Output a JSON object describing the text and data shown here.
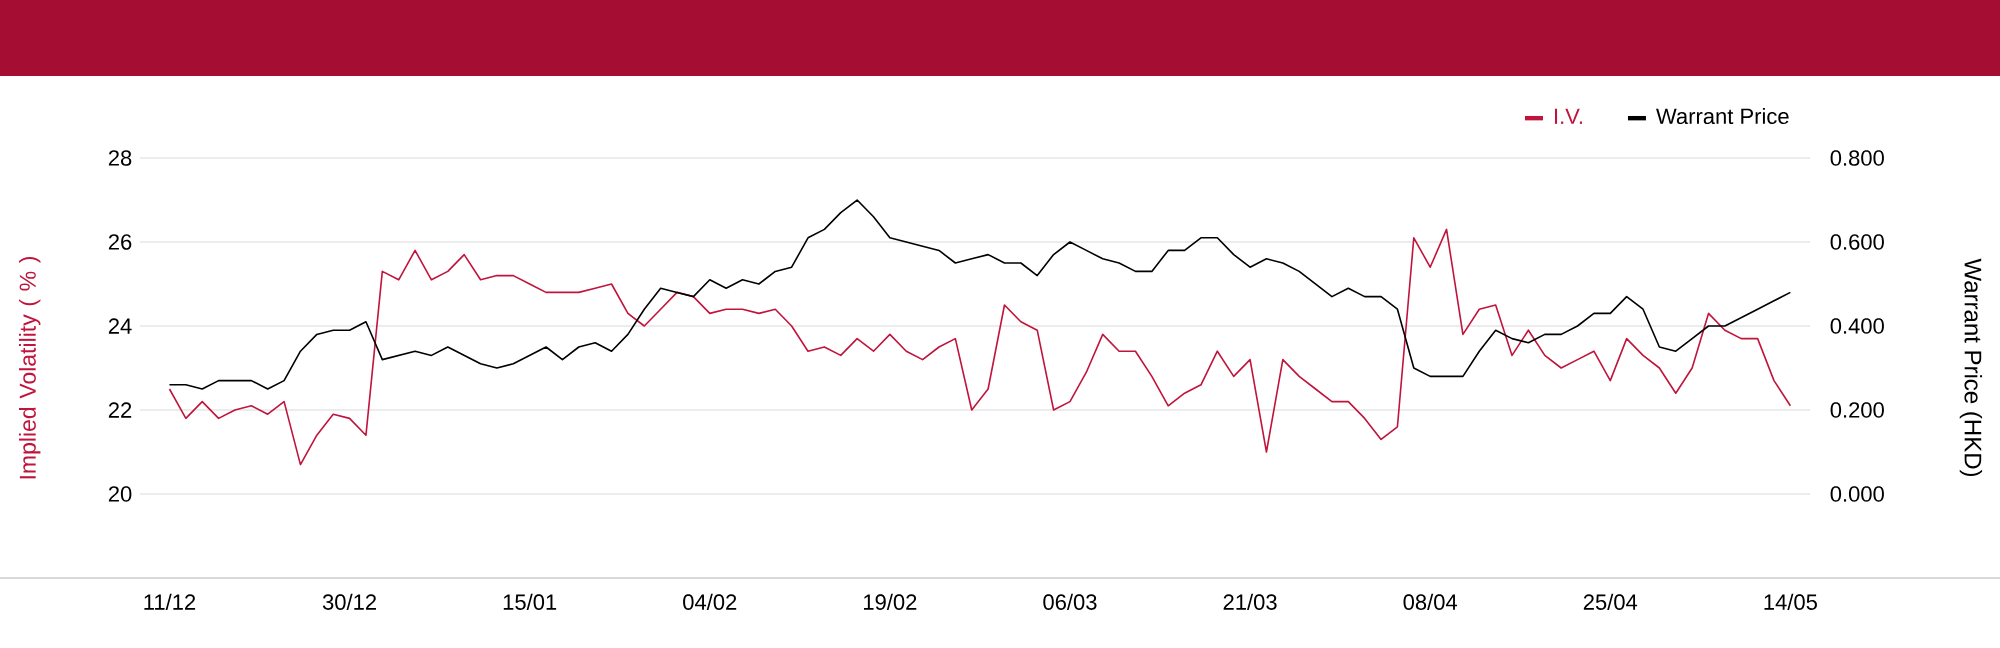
{
  "chart_data": {
    "type": "line",
    "categories": [
      "11/12",
      null,
      null,
      null,
      null,
      null,
      null,
      null,
      null,
      null,
      null,
      "30/12",
      null,
      null,
      null,
      null,
      null,
      null,
      null,
      null,
      null,
      null,
      "15/01",
      null,
      null,
      null,
      null,
      null,
      null,
      null,
      null,
      null,
      null,
      "04/02",
      null,
      null,
      null,
      null,
      null,
      null,
      null,
      null,
      null,
      null,
      "19/02",
      null,
      null,
      null,
      null,
      null,
      null,
      null,
      null,
      null,
      null,
      "06/03",
      null,
      null,
      null,
      null,
      null,
      null,
      null,
      null,
      null,
      null,
      "21/03",
      null,
      null,
      null,
      null,
      null,
      null,
      null,
      null,
      null,
      null,
      "08/04",
      null,
      null,
      null,
      null,
      null,
      null,
      null,
      null,
      null,
      null,
      "25/04",
      null,
      null,
      null,
      null,
      null,
      null,
      null,
      null,
      null,
      null,
      "14/05"
    ],
    "series": [
      {
        "name": "I.V.",
        "color": "#c0143c",
        "values": [
          22.5,
          21.8,
          22.2,
          21.8,
          22.0,
          22.1,
          21.9,
          22.2,
          20.7,
          21.4,
          21.9,
          21.8,
          21.4,
          25.3,
          25.1,
          25.8,
          25.1,
          25.3,
          25.7,
          25.1,
          25.2,
          25.2,
          25.0,
          24.8,
          24.8,
          24.8,
          24.9,
          25.0,
          24.3,
          24.0,
          24.4,
          24.8,
          24.7,
          24.3,
          24.4,
          24.4,
          24.3,
          24.4,
          24.0,
          23.4,
          23.5,
          23.3,
          23.7,
          23.4,
          23.8,
          23.4,
          23.2,
          23.5,
          23.7,
          22.0,
          22.5,
          24.5,
          24.1,
          23.9,
          22.0,
          22.2,
          22.9,
          23.8,
          23.4,
          23.4,
          22.8,
          22.1,
          22.4,
          22.6,
          23.4,
          22.8,
          23.2,
          21.0,
          23.2,
          22.8,
          22.5,
          22.2,
          22.2,
          21.8,
          21.3,
          21.6,
          26.1,
          25.4,
          26.3,
          23.8,
          24.4,
          24.5,
          23.3,
          23.9,
          23.3,
          23.0,
          23.2,
          23.4,
          22.7,
          23.7,
          23.3,
          23.0,
          22.4,
          23.0,
          24.3,
          23.9,
          23.7,
          23.7,
          22.7,
          22.1
        ]
      },
      {
        "name": "Warrant Price",
        "color": "#000000",
        "axis": "y2",
        "values": [
          0.26,
          0.26,
          0.25,
          0.27,
          0.27,
          0.27,
          0.25,
          0.27,
          0.34,
          0.38,
          0.39,
          0.39,
          0.41,
          0.32,
          0.33,
          0.34,
          0.33,
          0.35,
          0.33,
          0.31,
          0.3,
          0.31,
          0.33,
          0.35,
          0.32,
          0.35,
          0.36,
          0.34,
          0.38,
          0.44,
          0.49,
          0.48,
          0.47,
          0.51,
          0.49,
          0.51,
          0.5,
          0.53,
          0.54,
          0.61,
          0.63,
          0.67,
          0.7,
          0.66,
          0.61,
          0.6,
          0.59,
          0.58,
          0.55,
          0.56,
          0.57,
          0.55,
          0.55,
          0.52,
          0.57,
          0.6,
          0.58,
          0.56,
          0.55,
          0.53,
          0.53,
          0.58,
          0.58,
          0.61,
          0.61,
          0.57,
          0.54,
          0.56,
          0.55,
          0.53,
          0.5,
          0.47,
          0.49,
          0.47,
          0.47,
          0.44,
          0.3,
          0.28,
          0.28,
          0.28,
          0.34,
          0.39,
          0.37,
          0.36,
          0.38,
          0.38,
          0.4,
          0.43,
          0.43,
          0.47,
          0.44,
          0.35,
          0.34,
          0.37,
          0.4,
          0.4,
          0.42,
          0.44,
          0.46,
          0.48
        ]
      }
    ],
    "ylabel": "Implied Volatility ( % )",
    "y2label": "Warrant Price (HKD)",
    "ylim": [
      18,
      28
    ],
    "yticks": [
      20,
      22,
      24,
      26,
      28
    ],
    "y2lim": [
      -0.2,
      0.8
    ],
    "y2ticks": [
      {
        "value": 0,
        "label": "0.000"
      },
      {
        "value": 0.2,
        "label": "0.200"
      },
      {
        "value": 0.4,
        "label": "0.400"
      },
      {
        "value": 0.6,
        "label": "0.600"
      },
      {
        "value": 0.8,
        "label": "0.800"
      }
    ],
    "grid": "y",
    "legend": "top right"
  }
}
